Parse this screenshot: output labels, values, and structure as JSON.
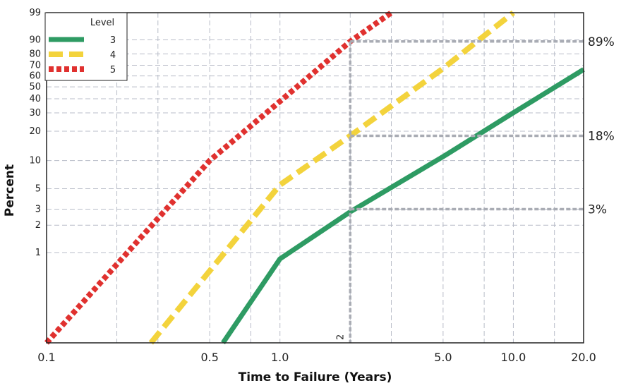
{
  "chart_data": {
    "type": "line",
    "title": "",
    "xlabel": "Time to Failure (Years)",
    "ylabel": "Percent",
    "x_scale": "log",
    "y_scale": "weibull-probability",
    "xlim": [
      0.1,
      20.0
    ],
    "ylim": [
      0.1,
      99
    ],
    "grid": true,
    "legend": {
      "title": "Level",
      "placement": "top-left"
    },
    "x_ticks": [
      {
        "value": 0.1,
        "label": "0.1"
      },
      {
        "value": 0.5,
        "label": "0.5"
      },
      {
        "value": 1.0,
        "label": "1.0"
      },
      {
        "value": 5.0,
        "label": "5.0"
      },
      {
        "value": 10.0,
        "label": "10.0"
      },
      {
        "value": 20.0,
        "label": "20.0"
      }
    ],
    "y_ticks": [
      {
        "value": 1,
        "label": "1"
      },
      {
        "value": 2,
        "label": "2"
      },
      {
        "value": 3,
        "label": "3"
      },
      {
        "value": 5,
        "label": "5"
      },
      {
        "value": 10,
        "label": "10"
      },
      {
        "value": 20,
        "label": "20"
      },
      {
        "value": 30,
        "label": "30"
      },
      {
        "value": 40,
        "label": "40"
      },
      {
        "value": 50,
        "label": "50"
      },
      {
        "value": 60,
        "label": "60"
      },
      {
        "value": 70,
        "label": "70"
      },
      {
        "value": 80,
        "label": "80"
      },
      {
        "value": 90,
        "label": "90"
      },
      {
        "value": 99,
        "label": "99"
      }
    ],
    "series": [
      {
        "name": "3",
        "color": "#2e9b63",
        "dash": "solid",
        "x": [
          0.57,
          1.0,
          2.0,
          5.0,
          10.0,
          20.0
        ],
        "y": [
          0.1,
          0.85,
          2.8,
          11,
          30,
          66
        ]
      },
      {
        "name": "4",
        "color": "#f3d33c",
        "dash": "dashed",
        "x": [
          0.28,
          1.0,
          2.0,
          5.0,
          10.0
        ],
        "y": [
          0.1,
          5.5,
          18,
          67,
          99
        ]
      },
      {
        "name": "5",
        "color": "#e0312f",
        "dash": "dotted",
        "x": [
          0.1,
          0.5,
          1.0,
          2.0,
          3.0
        ],
        "y": [
          0.1,
          10,
          38,
          89,
          99
        ]
      }
    ],
    "annotations": [
      {
        "type": "vline",
        "x": 2.0,
        "label": "2"
      },
      {
        "type": "hline",
        "y": 89,
        "from_x": 2.0,
        "label": "89%"
      },
      {
        "type": "hline",
        "y": 18,
        "from_x": 2.0,
        "label": "18%"
      },
      {
        "type": "hline",
        "y": 3,
        "from_x": 2.0,
        "label": "3%"
      }
    ]
  }
}
